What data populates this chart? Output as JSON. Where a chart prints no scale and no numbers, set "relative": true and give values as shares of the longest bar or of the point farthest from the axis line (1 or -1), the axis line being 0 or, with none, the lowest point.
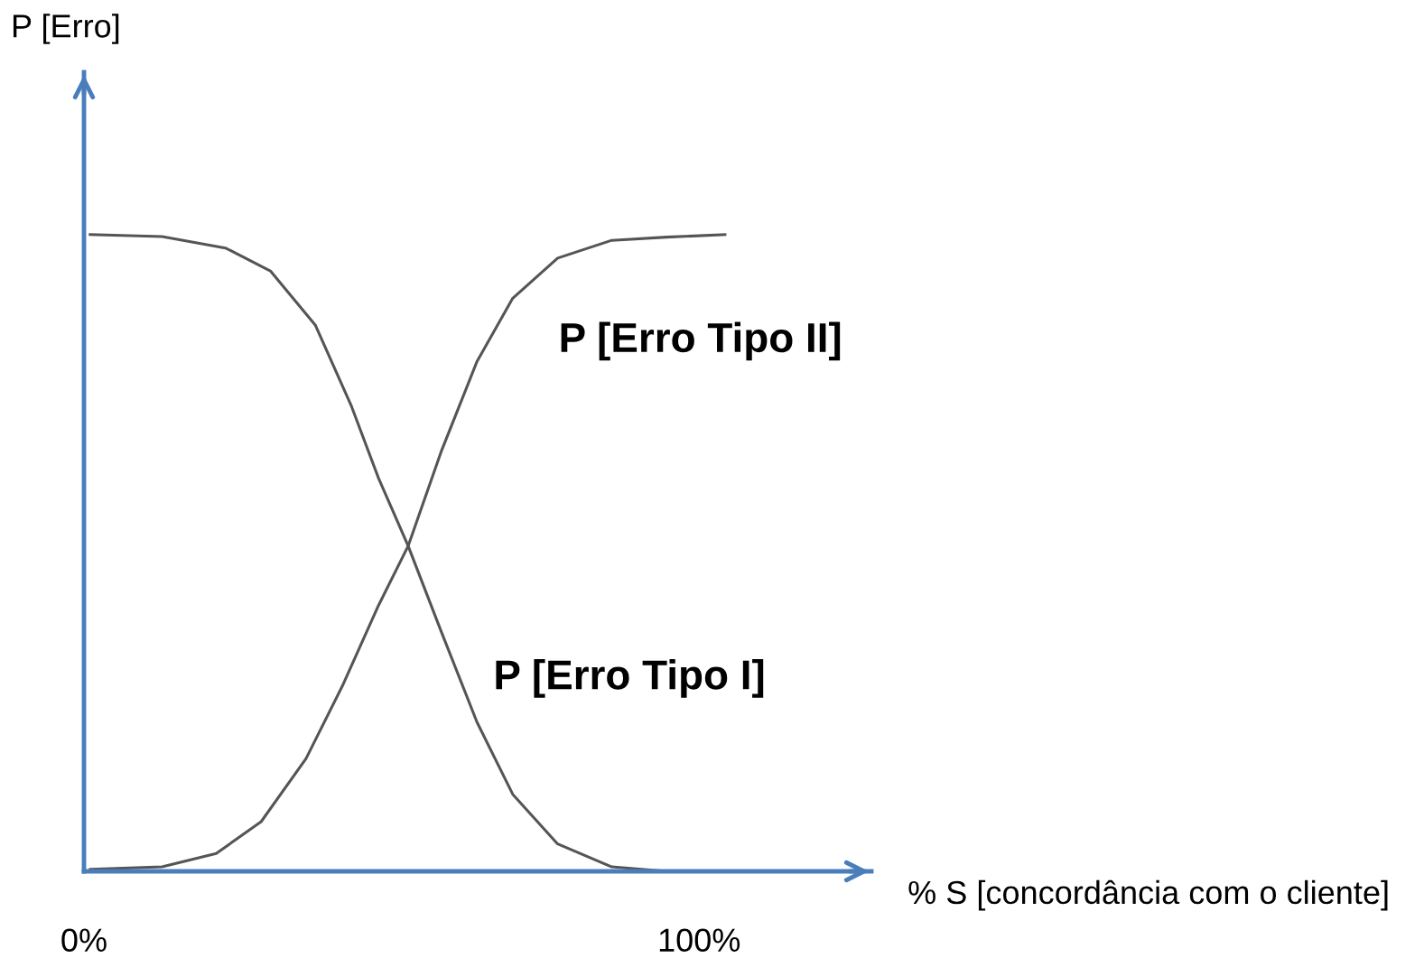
{
  "chart_data": {
    "type": "line",
    "relative": true,
    "annotations": [
      "P [Erro]"
    ],
    "xlabel": "% S [concordância com o cliente]",
    "xlim": [
      0,
      128
    ],
    "xticks": [
      {
        "value": 0,
        "label": "0%"
      },
      {
        "value": 100,
        "label": "100%"
      }
    ],
    "grid": false,
    "legend": false,
    "marker": "none",
    "line_style": "solid",
    "series": [
      {
        "name": "P [Erro Tipo I]",
        "color": "#555555",
        "x": [
          1.0,
          12.7,
          23.0,
          30.3,
          37.6,
          43.5,
          47.9,
          52.7,
          58.1,
          63.9,
          69.7,
          77.0,
          85.8,
          94.7,
          104.2
        ],
        "values": [
          1.0,
          0.997,
          0.979,
          0.943,
          0.858,
          0.73,
          0.617,
          0.511,
          0.376,
          0.234,
          0.121,
          0.043,
          0.007,
          0.0,
          0.0
        ]
      },
      {
        "name": "P [Erro Tipo II]",
        "color": "#555555",
        "x": [
          1.0,
          12.7,
          21.5,
          28.8,
          36.1,
          42.0,
          47.9,
          52.7,
          58.1,
          63.9,
          69.7,
          77.0,
          85.8,
          94.7,
          104.2
        ],
        "values": [
          0.003,
          0.007,
          0.028,
          0.078,
          0.177,
          0.291,
          0.418,
          0.511,
          0.66,
          0.801,
          0.9,
          0.963,
          0.991,
          0.996,
          1.0
        ]
      }
    ]
  }
}
